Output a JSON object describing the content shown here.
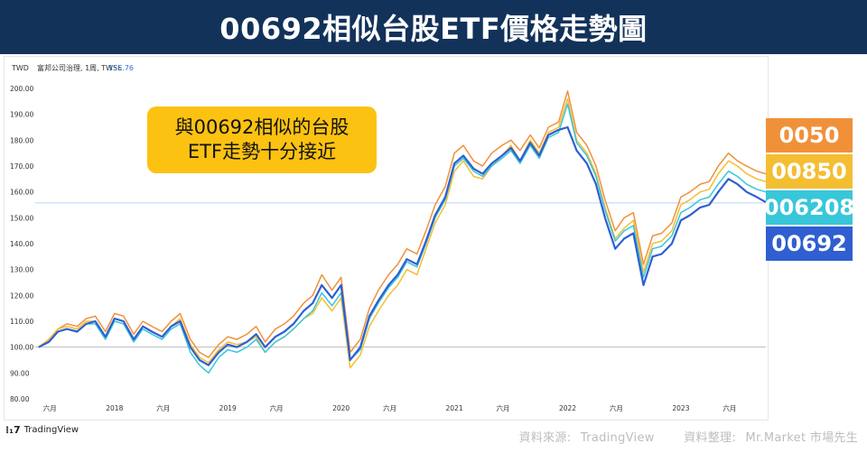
{
  "header": {
    "title": "00692相似台股ETF價格走勢圖"
  },
  "chart_info": {
    "currency": "TWD",
    "instrument": "富邦公司治理, 1周, TWSE",
    "last_price": "155.76"
  },
  "callout": {
    "line1": "與00692相似的台股",
    "line2": "ETF走勢十分接近"
  },
  "legend": [
    {
      "label": "0050",
      "color": "#f0913a"
    },
    {
      "label": "00850",
      "color": "#f4be33"
    },
    {
      "label": "006208",
      "color": "#38c6d9"
    },
    {
      "label": "00692",
      "color": "#2f5fd0"
    }
  ],
  "footer": {
    "logo": "TradingView",
    "source_label": "資料來源:",
    "source_value": "TradingView",
    "arrange_label": "資料整理:",
    "arrange_value": "Mr.Market 市場先生"
  },
  "chart_data": {
    "type": "line",
    "y_ticks": [
      "200.00",
      "190.00",
      "180.00",
      "170.00",
      "160.00",
      "150.00",
      "140.00",
      "130.00",
      "120.00",
      "110.00",
      "100.00",
      "90.00",
      "80.00"
    ],
    "ylim": [
      80,
      200
    ],
    "x_ticks": [
      "六月",
      "2018",
      "六月",
      "2019",
      "六月",
      "2020",
      "六月",
      "2021",
      "六月",
      "2022",
      "六月",
      "2023",
      "六月"
    ],
    "x_tick_pos": [
      2017.43,
      2018.0,
      2018.43,
      2019.0,
      2019.43,
      2020.0,
      2020.43,
      2021.0,
      2021.43,
      2022.0,
      2022.43,
      2023.0,
      2023.43
    ],
    "xlim": [
      2017.3,
      2023.75
    ],
    "reference_lines": [
      100,
      155.76
    ],
    "grid": false,
    "x": [
      2017.33,
      2017.42,
      2017.5,
      2017.58,
      2017.67,
      2017.75,
      2017.83,
      2017.92,
      2018.0,
      2018.08,
      2018.17,
      2018.25,
      2018.33,
      2018.42,
      2018.5,
      2018.58,
      2018.67,
      2018.75,
      2018.83,
      2018.92,
      2019.0,
      2019.08,
      2019.17,
      2019.25,
      2019.33,
      2019.42,
      2019.5,
      2019.58,
      2019.67,
      2019.75,
      2019.83,
      2019.92,
      2020.0,
      2020.08,
      2020.17,
      2020.25,
      2020.33,
      2020.42,
      2020.5,
      2020.58,
      2020.67,
      2020.75,
      2020.83,
      2020.92,
      2021.0,
      2021.08,
      2021.17,
      2021.25,
      2021.33,
      2021.42,
      2021.5,
      2021.58,
      2021.67,
      2021.75,
      2021.83,
      2021.92,
      2022.0,
      2022.08,
      2022.17,
      2022.25,
      2022.33,
      2022.42,
      2022.5,
      2022.58,
      2022.67,
      2022.75,
      2022.83,
      2022.92,
      2023.0,
      2023.08,
      2023.17,
      2023.25,
      2023.33,
      2023.42,
      2023.5,
      2023.58,
      2023.67,
      2023.75
    ],
    "series": [
      {
        "name": "0050",
        "color": "#f0913a",
        "values": [
          100,
          103,
          107,
          109,
          108,
          111,
          112,
          106,
          113,
          112,
          105,
          110,
          108,
          106,
          110,
          113,
          103,
          98,
          96,
          101,
          104,
          103,
          105,
          108,
          102,
          107,
          109,
          112,
          117,
          120,
          128,
          122,
          127,
          98,
          103,
          115,
          122,
          128,
          132,
          138,
          136,
          145,
          155,
          162,
          175,
          178,
          172,
          170,
          175,
          178,
          180,
          176,
          182,
          177,
          185,
          187,
          199,
          183,
          178,
          170,
          157,
          145,
          150,
          152,
          132,
          143,
          144,
          148,
          158,
          160,
          163,
          164,
          170,
          175,
          172,
          170,
          168,
          167
        ]
      },
      {
        "name": "00850",
        "color": "#f4be33",
        "values": [
          100,
          103,
          107,
          108,
          107,
          110,
          110,
          104,
          111,
          110,
          103,
          108,
          106,
          104,
          108,
          111,
          101,
          96,
          94,
          99,
          102,
          101,
          102,
          104,
          98,
          102,
          104,
          107,
          111,
          113,
          119,
          114,
          119,
          92,
          97,
          108,
          114,
          120,
          124,
          130,
          128,
          138,
          148,
          155,
          168,
          172,
          166,
          165,
          170,
          174,
          178,
          172,
          180,
          175,
          183,
          185,
          196,
          180,
          175,
          167,
          154,
          142,
          146,
          149,
          129,
          140,
          141,
          145,
          155,
          157,
          160,
          161,
          167,
          172,
          170,
          167,
          165,
          164
        ]
      },
      {
        "name": "006208",
        "color": "#38c6d9",
        "values": [
          100,
          102,
          106,
          107,
          106,
          109,
          109,
          103,
          110,
          109,
          102,
          107,
          105,
          103,
          107,
          109,
          98,
          93,
          90,
          96,
          99,
          98,
          100,
          103,
          98,
          102,
          104,
          107,
          111,
          114,
          121,
          116,
          121,
          95,
          99,
          111,
          117,
          123,
          127,
          133,
          131,
          140,
          150,
          157,
          170,
          173,
          168,
          166,
          170,
          173,
          176,
          171,
          178,
          173,
          181,
          183,
          194,
          179,
          174,
          166,
          153,
          141,
          145,
          147,
          127,
          138,
          139,
          143,
          152,
          154,
          157,
          158,
          163,
          168,
          166,
          163,
          161,
          160
        ]
      },
      {
        "name": "00692",
        "color": "#2f5fd0",
        "values": [
          100,
          102,
          106,
          107,
          106,
          109,
          110,
          104,
          111,
          110,
          103,
          108,
          106,
          104,
          108,
          110,
          100,
          95,
          93,
          98,
          101,
          100,
          102,
          105,
          100,
          104,
          106,
          109,
          114,
          117,
          124,
          119,
          124,
          95,
          100,
          112,
          118,
          124,
          128,
          134,
          132,
          141,
          151,
          158,
          171,
          174,
          169,
          167,
          171,
          174,
          177,
          172,
          179,
          174,
          182,
          184,
          185,
          176,
          171,
          163,
          150,
          138,
          142,
          144,
          124,
          135,
          136,
          140,
          149,
          151,
          154,
          155,
          160,
          165,
          163,
          160,
          158,
          156
        ]
      }
    ]
  }
}
